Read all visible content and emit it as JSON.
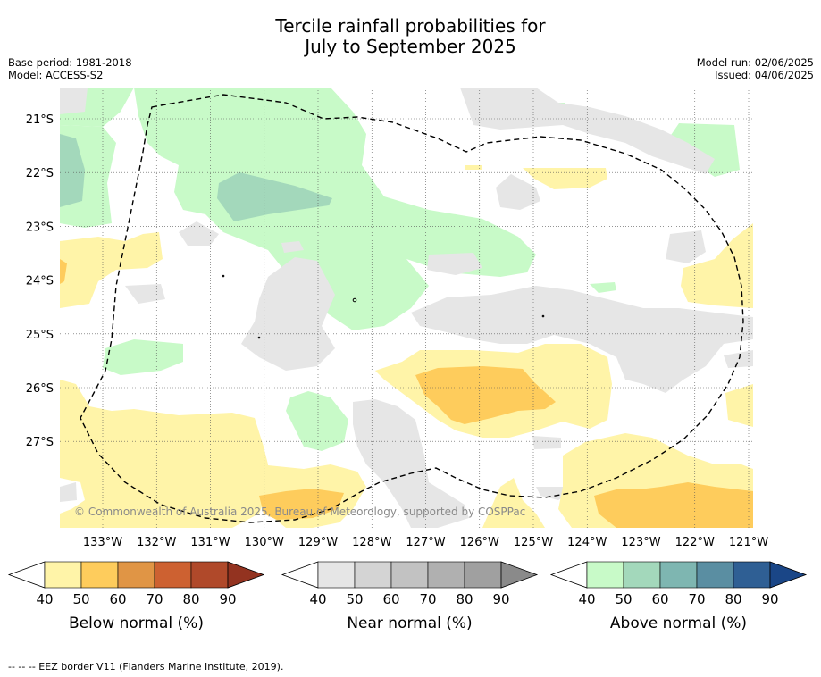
{
  "title_line1": "Tercile rainfall probabilities for",
  "title_line2": "July to September 2025",
  "meta_left": {
    "base_period": "Base period: 1981-2018",
    "model": "Model: ACCESS-S2"
  },
  "meta_right": {
    "model_run": "Model run: 02/06/2025",
    "issued": "Issued: 04/06/2025"
  },
  "axes": {
    "lon_ticks": [
      "133°W",
      "132°W",
      "131°W",
      "130°W",
      "129°W",
      "128°W",
      "127°W",
      "126°W",
      "125°W",
      "124°W",
      "123°W",
      "122°W",
      "121°W"
    ],
    "lat_ticks": [
      "21°S",
      "22°S",
      "23°S",
      "24°S",
      "25°S",
      "26°S",
      "27°S"
    ]
  },
  "copyright": "© Commonwealth of Australia 2025, Bureau of Meteorology, supported by COSPPac",
  "legends": [
    {
      "title": "Below normal (%)",
      "ticks": [
        "40",
        "50",
        "60",
        "70",
        "80",
        "90"
      ],
      "colors": [
        "#fff4a8",
        "#fecc5c",
        "#e09545",
        "#cd6131",
        "#b0492a",
        "#933320"
      ]
    },
    {
      "title": "Near normal (%)",
      "ticks": [
        "40",
        "50",
        "60",
        "70",
        "80",
        "90"
      ],
      "colors": [
        "#e6e6e6",
        "#d4d4d4",
        "#c2c2c2",
        "#b0b0b0",
        "#a0a0a0",
        "#8a8a8a"
      ]
    },
    {
      "title": "Above normal (%)",
      "ticks": [
        "40",
        "50",
        "60",
        "70",
        "80",
        "90"
      ],
      "colors": [
        "#c8fac8",
        "#a3d8bb",
        "#7eb6b1",
        "#5a8ea2",
        "#2f5f94",
        "#1a4687"
      ]
    }
  ],
  "footer": "-- -- -- EEZ border V11 (Flanders Marine Institute, 2019)."
}
